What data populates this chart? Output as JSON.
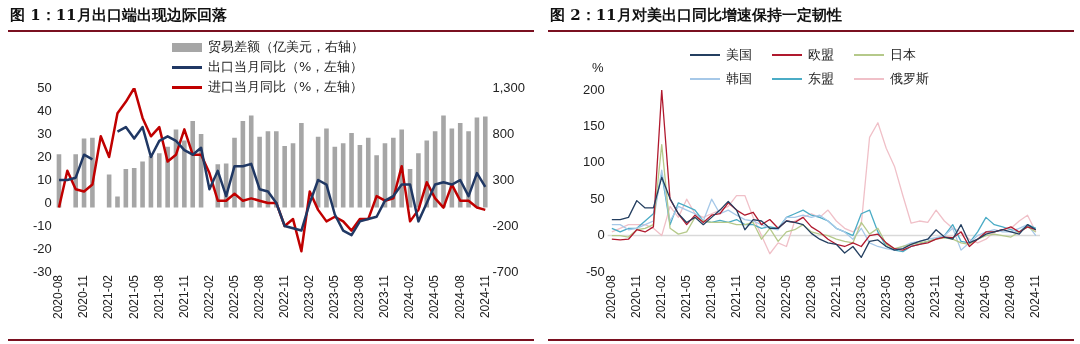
{
  "chart_data": [
    {
      "type": "bar",
      "title": "图 1：11月出口端出现边际回落",
      "legend": "top",
      "grid": false,
      "categories": [
        "2020-08",
        null,
        null,
        "2020-11",
        null,
        null,
        "2021-02",
        null,
        null,
        "2021-05",
        null,
        null,
        "2021-08",
        null,
        null,
        "2021-11",
        null,
        null,
        "2022-02",
        null,
        null,
        "2022-05",
        null,
        null,
        "2022-08",
        null,
        null,
        "2022-11",
        null,
        null,
        "2023-02",
        null,
        null,
        "2023-05",
        null,
        null,
        "2023-08",
        null,
        null,
        "2023-11",
        null,
        null,
        "2024-02",
        null,
        null,
        "2024-05",
        null,
        null,
        "2024-08",
        null,
        null,
        "2024-11"
      ],
      "ylim": [
        -30,
        50
      ],
      "yticks": [
        -30,
        -20,
        -10,
        0,
        10,
        20,
        30,
        40,
        50
      ],
      "y2lim": [
        -700,
        1300
      ],
      "y2ticks": [
        -700,
        -200,
        300,
        800,
        {
          "value": 1300,
          "label": "1,300"
        }
      ],
      "series": [
        {
          "name": "贸易差额（亿美元，右轴）",
          "axis": "y2",
          "color": "#a6a6a6",
          "values": [
            580,
            null,
            580,
            750,
            760,
            null,
            360,
            120,
            420,
            430,
            500,
            560,
            590,
            660,
            850,
            730,
            940,
            800,
            null,
            470,
            480,
            760,
            940,
            1000,
            770,
            830,
            830,
            670,
            700,
            920,
            null,
            770,
            860,
            660,
            700,
            810,
            680,
            760,
            570,
            700,
            760,
            850,
            420,
            590,
            730,
            830,
            1000,
            860,
            920,
            830,
            980,
            990
          ]
        },
        {
          "name": "出口当月同比（%，左轴）",
          "type": "line",
          "axis": "y",
          "color": "#203864",
          "values": [
            10,
            10,
            11,
            21,
            19,
            null,
            null,
            31,
            33,
            28,
            33,
            20,
            27,
            29,
            27,
            23,
            21,
            24,
            6,
            14,
            3,
            16,
            16,
            17,
            6,
            5,
            0,
            -10,
            -11,
            -12,
            0,
            10,
            8,
            -5,
            -12,
            -14,
            -8,
            -7,
            -6,
            1,
            3,
            8,
            8,
            -8,
            0,
            8,
            9,
            8,
            10,
            3,
            13,
            7
          ]
        },
        {
          "name": "进口当月同比（%，左轴）",
          "type": "line",
          "axis": "y",
          "color": "#c00000",
          "values": [
            -2,
            14,
            6,
            5,
            8,
            29,
            20,
            39,
            44,
            50,
            37,
            29,
            33,
            18,
            21,
            32,
            21,
            21,
            13,
            1,
            1,
            4,
            1,
            2,
            1,
            0,
            0,
            -10,
            -7,
            -21,
            5,
            -3,
            -8,
            -6,
            -8,
            -12,
            -7,
            -7,
            3,
            1,
            2,
            16,
            -8,
            -3,
            9,
            2,
            -2,
            8,
            1,
            1,
            -2,
            -3
          ]
        }
      ]
    },
    {
      "type": "line",
      "title": "图 2：11月对美出口同比增速保持一定韧性",
      "ylabel": "%",
      "legend": "top",
      "grid": false,
      "marker": "none",
      "categories": [
        "2020-08",
        null,
        null,
        "2020-11",
        null,
        null,
        "2021-02",
        null,
        null,
        "2021-05",
        null,
        null,
        "2021-08",
        null,
        null,
        "2021-11",
        null,
        null,
        "2022-02",
        null,
        null,
        "2022-05",
        null,
        null,
        "2022-08",
        null,
        null,
        "2022-11",
        null,
        null,
        "2023-02",
        null,
        null,
        "2023-05",
        null,
        null,
        "2023-08",
        null,
        null,
        "2023-11",
        null,
        null,
        "2024-02",
        null,
        null,
        "2024-05",
        null,
        null,
        "2024-08",
        null,
        null,
        "2024-11"
      ],
      "ylim": [
        -50,
        200
      ],
      "yticks": [
        -50,
        0,
        50,
        100,
        150,
        200
      ],
      "ref_lines": [
        {
          "axis": "y",
          "value": 0,
          "color": "#d9d9d9"
        }
      ],
      "series": [
        {
          "name": "美国",
          "color": "#243f60",
          "values": [
            22,
            22,
            25,
            48,
            38,
            38,
            80,
            51,
            30,
            18,
            25,
            15,
            25,
            35,
            47,
            35,
            8,
            22,
            20,
            10,
            10,
            20,
            18,
            15,
            3,
            -5,
            -10,
            -12,
            -24,
            -15,
            -30,
            -8,
            -6,
            -15,
            -20,
            -18,
            -12,
            -8,
            -5,
            8,
            -2,
            -5,
            15,
            -10,
            -5,
            2,
            5,
            8,
            5,
            2,
            15,
            8
          ]
        },
        {
          "name": "欧盟",
          "color": "#b0192e",
          "values": [
            -5,
            -6,
            -5,
            8,
            5,
            12,
            200,
            50,
            30,
            15,
            28,
            18,
            28,
            30,
            45,
            35,
            28,
            32,
            15,
            22,
            10,
            20,
            18,
            25,
            12,
            5,
            -5,
            -12,
            -15,
            -10,
            -15,
            0,
            2,
            -10,
            -18,
            -20,
            -15,
            -12,
            -10,
            -5,
            -2,
            -3,
            5,
            -15,
            -5,
            5,
            5,
            8,
            12,
            5,
            12,
            8
          ]
        },
        {
          "name": "日本",
          "color": "#b5c98a",
          "values": [
            0,
            0,
            -2,
            8,
            10,
            15,
            125,
            10,
            2,
            5,
            25,
            20,
            18,
            18,
            18,
            15,
            15,
            18,
            -5,
            10,
            -8,
            5,
            8,
            15,
            5,
            2,
            0,
            -5,
            -8,
            -10,
            18,
            2,
            10,
            -12,
            -18,
            -15,
            -12,
            -10,
            -8,
            -5,
            -3,
            -5,
            -10,
            -12,
            -5,
            0,
            2,
            0,
            -2,
            5,
            12,
            5
          ]
        },
        {
          "name": "韩国",
          "color": "#a6c8e8",
          "values": [
            15,
            15,
            8,
            10,
            15,
            20,
            90,
            20,
            40,
            35,
            30,
            20,
            50,
            30,
            35,
            28,
            22,
            20,
            15,
            10,
            8,
            25,
            25,
            28,
            25,
            28,
            20,
            10,
            5,
            -5,
            10,
            -10,
            -15,
            -18,
            -20,
            -15,
            -10,
            -8,
            -5,
            -3,
            0,
            10,
            -20,
            -10,
            0,
            5,
            8,
            5,
            5,
            10,
            15,
            0
          ]
        },
        {
          "name": "东盟",
          "color": "#4bacc6",
          "values": [
            10,
            5,
            10,
            10,
            20,
            30,
            85,
            15,
            45,
            40,
            35,
            20,
            18,
            21,
            18,
            22,
            15,
            15,
            10,
            12,
            10,
            25,
            30,
            35,
            28,
            25,
            20,
            10,
            5,
            0,
            30,
            35,
            5,
            -15,
            -20,
            -22,
            -15,
            -12,
            -8,
            -5,
            0,
            15,
            -8,
            -10,
            5,
            25,
            15,
            12,
            8,
            5,
            15,
            10
          ]
        },
        {
          "name": "俄罗斯",
          "color": "#f0c0c8",
          "values": [
            5,
            10,
            15,
            15,
            15,
            10,
            0,
            40,
            25,
            50,
            30,
            25,
            30,
            35,
            40,
            55,
            55,
            25,
            0,
            -25,
            -10,
            -15,
            20,
            25,
            30,
            25,
            35,
            20,
            10,
            5,
            15,
            135,
            155,
            120,
            95,
            55,
            17,
            20,
            18,
            35,
            20,
            10,
            5,
            -5,
            -10,
            -5,
            5,
            8,
            10,
            20,
            28,
            5
          ]
        }
      ]
    }
  ]
}
